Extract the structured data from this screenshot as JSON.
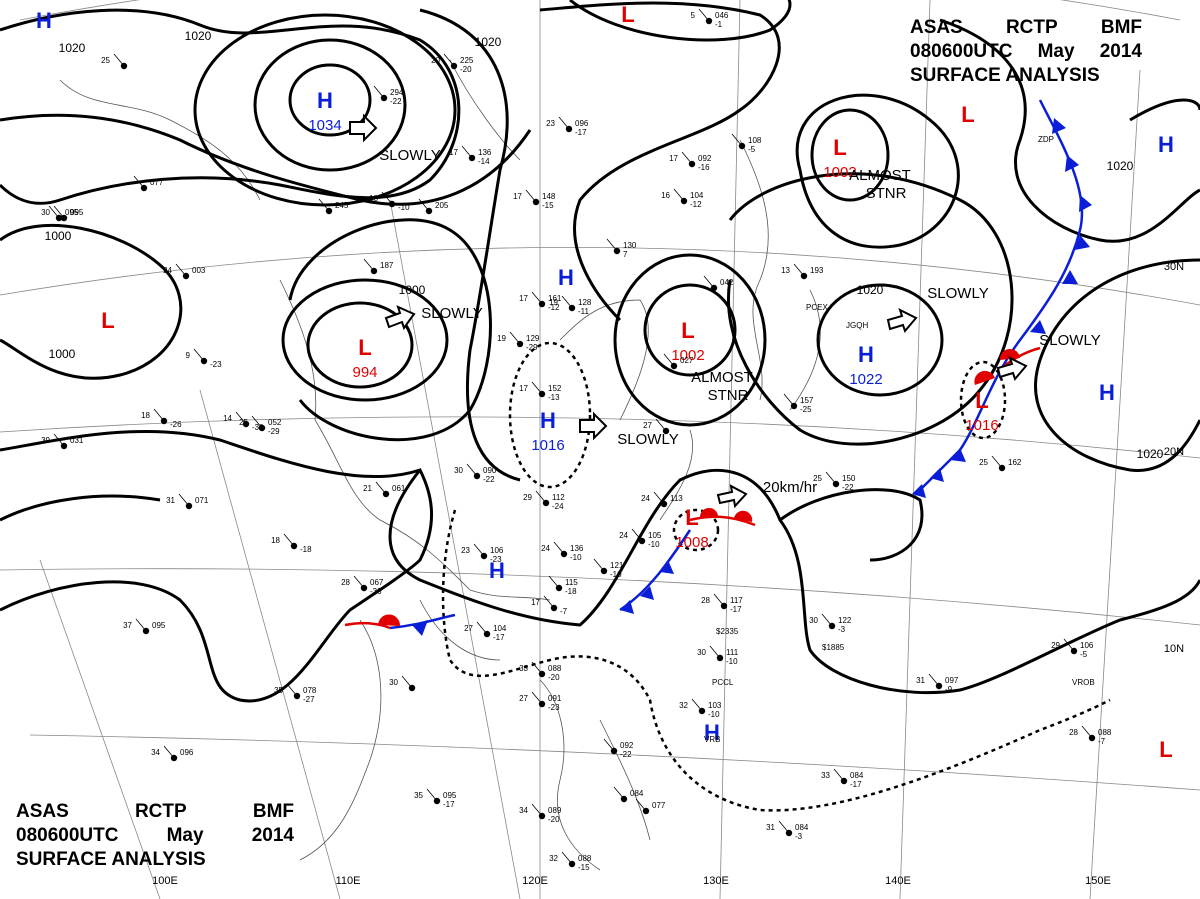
{
  "header": {
    "line1": [
      "ASAS",
      "RCTP",
      "BMF"
    ],
    "line2": [
      "080600UTC",
      "May",
      "2014"
    ],
    "line3": "SURFACE ANALYSIS"
  },
  "colors": {
    "high": "#0a1ed8",
    "low": "#e00000",
    "isobar": "#000000",
    "cold_front": "#0a1ed8",
    "warm_front": "#e00000"
  },
  "pressure_centers": [
    {
      "type": "H",
      "value": "1034"
    },
    {
      "type": "L",
      "value": "994"
    },
    {
      "type": "H",
      "value": "1016"
    },
    {
      "type": "L",
      "value": "1002"
    },
    {
      "type": "L",
      "value": "1002"
    },
    {
      "type": "H",
      "value": "1022"
    },
    {
      "type": "L",
      "value": "1016"
    },
    {
      "type": "L",
      "value": "1008"
    },
    {
      "type": "H",
      "value": ""
    },
    {
      "type": "H",
      "value": ""
    },
    {
      "type": "H",
      "value": ""
    },
    {
      "type": "H",
      "value": ""
    },
    {
      "type": "H",
      "value": ""
    },
    {
      "type": "H",
      "value": ""
    },
    {
      "type": "L",
      "value": ""
    },
    {
      "type": "L",
      "value": ""
    },
    {
      "type": "L",
      "value": ""
    },
    {
      "type": "L",
      "value": ""
    }
  ],
  "isobar_labels": [
    "1020",
    "1020",
    "1020",
    "1000",
    "1000",
    "1000",
    "1020",
    "1020",
    "1020"
  ],
  "motion_labels": [
    "SLOWLY",
    "SLOWLY",
    "SLOWLY",
    "SLOWLY",
    "SLOWLY",
    "20km/hr"
  ],
  "stationary_labels": [
    [
      "ALMOST",
      "STNR"
    ],
    [
      "ALMOST",
      "STNR"
    ]
  ],
  "longitude_labels": [
    "100E",
    "110E",
    "120E",
    "130E",
    "140E",
    "150E"
  ],
  "latitude_labels": [
    "30N",
    "20N",
    "10N"
  ],
  "station_plots": [
    {
      "t": "25",
      "p": "",
      "dew": ""
    },
    {
      "t": "24",
      "p": "003",
      "dew": ""
    },
    {
      "t": "30",
      "p": "095",
      "dew": ""
    },
    {
      "t": "9",
      "p": "",
      "dew": "-23"
    },
    {
      "t": "14",
      "p": "",
      "dew": "-30"
    },
    {
      "t": "18",
      "p": "",
      "dew": "-26"
    },
    {
      "t": "39",
      "p": "031",
      "dew": ""
    },
    {
      "t": "31",
      "p": "071",
      "dew": ""
    },
    {
      "t": "37",
      "p": "095",
      "dew": ""
    },
    {
      "t": "34",
      "p": "096",
      "dew": ""
    },
    {
      "t": "28",
      "p": "067",
      "dew": "-33"
    },
    {
      "t": "35",
      "p": "078",
      "dew": "-27"
    },
    {
      "t": "30",
      "p": "",
      "dew": ""
    },
    {
      "t": "25",
      "p": "052",
      "dew": "-29"
    },
    {
      "t": "30",
      "p": "090",
      "dew": "-22"
    },
    {
      "t": "21",
      "p": "061",
      "dew": ""
    },
    {
      "t": "18",
      "p": "",
      "dew": "-18"
    },
    {
      "t": "23",
      "p": "106",
      "dew": "-23"
    },
    {
      "t": "27",
      "p": "104",
      "dew": "-17"
    },
    {
      "t": "35",
      "p": "095",
      "dew": "-17"
    },
    {
      "t": "34",
      "p": "089",
      "dew": "-20"
    },
    {
      "t": "32",
      "p": "088",
      "dew": "-15"
    },
    {
      "t": "33",
      "p": "088",
      "dew": "-20"
    },
    {
      "t": "27",
      "p": "091",
      "dew": "-23"
    },
    {
      "t": "29",
      "p": "112",
      "dew": "-24"
    },
    {
      "t": "24",
      "p": "136",
      "dew": "-10"
    },
    {
      "t": "24",
      "p": "105",
      "dew": "-10"
    },
    {
      "t": "24",
      "p": "113",
      "dew": ""
    },
    {
      "t": "27",
      "p": "",
      "dew": ""
    },
    {
      "t": "17",
      "p": "161",
      "dew": "-12"
    },
    {
      "t": "19",
      "p": "128",
      "dew": "-11"
    },
    {
      "t": "19",
      "p": "129",
      "dew": "-29"
    },
    {
      "t": "17",
      "p": "152",
      "dew": "-13"
    },
    {
      "t": "17",
      "p": "148",
      "dew": "-15"
    },
    {
      "t": "17",
      "p": "092",
      "dew": "-16"
    },
    {
      "t": "16",
      "p": "104",
      "dew": "-12"
    },
    {
      "t": "23",
      "p": "096",
      "dew": "-17"
    },
    {
      "t": "17",
      "p": "136",
      "dew": "-14"
    },
    {
      "t": "18",
      "p": "",
      "dew": "-10"
    },
    {
      "t": "20",
      "p": "225",
      "dew": "-20"
    },
    {
      "t": "",
      "p": "294",
      "dew": "-22"
    },
    {
      "t": "",
      "p": "245",
      "dew": ""
    },
    {
      "t": "",
      "p": "205",
      "dew": ""
    },
    {
      "t": "",
      "p": "187",
      "dew": ""
    },
    {
      "t": "",
      "p": "077",
      "dew": ""
    },
    {
      "t": "",
      "p": "095",
      "dew": ""
    },
    {
      "t": "5",
      "p": "046",
      "dew": "-1"
    },
    {
      "t": "",
      "p": "108",
      "dew": "-5"
    },
    {
      "t": "",
      "p": "130",
      "dew": "7"
    },
    {
      "t": "13",
      "p": "193",
      "dew": ""
    },
    {
      "t": "",
      "p": "157",
      "dew": "-25"
    },
    {
      "t": "25",
      "p": "150",
      "dew": "-22"
    },
    {
      "t": "25",
      "p": "162",
      "dew": ""
    },
    {
      "t": "28",
      "p": "117",
      "dew": "-17"
    },
    {
      "t": "30",
      "p": "111",
      "dew": "-10"
    },
    {
      "t": "30",
      "p": "122",
      "dew": "-3"
    },
    {
      "t": "32",
      "p": "103",
      "dew": "-10"
    },
    {
      "t": "31",
      "p": "097",
      "dew": "-9"
    },
    {
      "t": "29",
      "p": "106",
      "dew": "-5"
    },
    {
      "t": "28",
      "p": "088",
      "dew": "-7"
    },
    {
      "t": "33",
      "p": "084",
      "dew": "-17"
    },
    {
      "t": "31",
      "p": "084",
      "dew": "-3"
    },
    {
      "t": "",
      "p": "092",
      "dew": "-22"
    },
    {
      "t": "",
      "p": "084",
      "dew": ""
    },
    {
      "t": "",
      "p": "077",
      "dew": ""
    },
    {
      "t": "",
      "p": "121",
      "dew": "-10"
    },
    {
      "t": "17",
      "p": "",
      "dew": "-7"
    },
    {
      "t": "",
      "p": "115",
      "dew": "-18"
    },
    {
      "t": "",
      "p": "042",
      "dew": ""
    },
    {
      "t": "",
      "p": "027",
      "dew": ""
    }
  ],
  "station_ids": [
    "PCEX",
    "JGQH",
    "PCCL",
    "VROB",
    "ZDP",
    "$2335",
    "$1885",
    "VRB"
  ]
}
